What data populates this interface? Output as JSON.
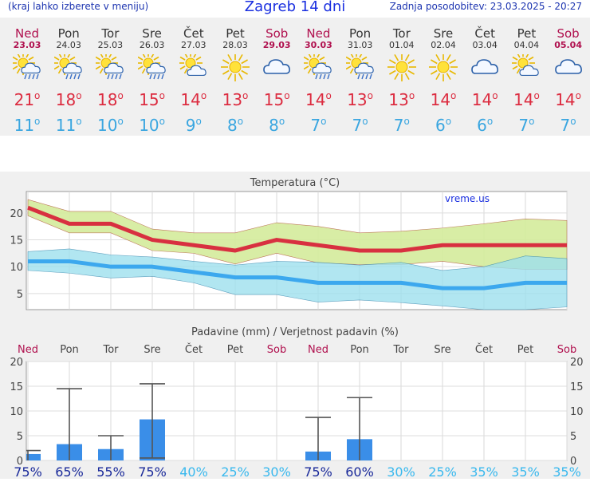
{
  "header": {
    "left_note": "(kraj lahko izberete v meniju)",
    "title": "Zagreb 14 dni",
    "updated": "Zadnja posodobitev: 23.03.2025 - 20:27"
  },
  "days": [
    {
      "name": "Ned",
      "date": "23.03",
      "weekend": true,
      "icon": "sun-cloud-rain-icon",
      "tmax": "21",
      "tmin": "11"
    },
    {
      "name": "Pon",
      "date": "24.03",
      "weekend": false,
      "icon": "sun-cloud-rain-icon",
      "tmax": "18",
      "tmin": "11"
    },
    {
      "name": "Tor",
      "date": "25.03",
      "weekend": false,
      "icon": "sun-cloud-rain-icon",
      "tmax": "18",
      "tmin": "10"
    },
    {
      "name": "Sre",
      "date": "26.03",
      "weekend": false,
      "icon": "sun-cloud-rain-icon",
      "tmax": "15",
      "tmin": "10"
    },
    {
      "name": "Čet",
      "date": "27.03",
      "weekend": false,
      "icon": "sun-cloud-icon",
      "tmax": "14",
      "tmin": "9"
    },
    {
      "name": "Pet",
      "date": "28.03",
      "weekend": false,
      "icon": "sun-icon",
      "tmax": "13",
      "tmin": "8"
    },
    {
      "name": "Sob",
      "date": "29.03",
      "weekend": true,
      "icon": "cloud-icon",
      "tmax": "15",
      "tmin": "8"
    },
    {
      "name": "Ned",
      "date": "30.03",
      "weekend": true,
      "icon": "sun-cloud-rain-icon",
      "tmax": "14",
      "tmin": "7"
    },
    {
      "name": "Pon",
      "date": "31.03",
      "weekend": false,
      "icon": "sun-cloud-rain-icon",
      "tmax": "13",
      "tmin": "7"
    },
    {
      "name": "Tor",
      "date": "01.04",
      "weekend": false,
      "icon": "sun-icon",
      "tmax": "13",
      "tmin": "7"
    },
    {
      "name": "Sre",
      "date": "02.04",
      "weekend": false,
      "icon": "sun-icon",
      "tmax": "14",
      "tmin": "6"
    },
    {
      "name": "Čet",
      "date": "03.04",
      "weekend": false,
      "icon": "cloud-icon",
      "tmax": "14",
      "tmin": "6"
    },
    {
      "name": "Pet",
      "date": "04.04",
      "weekend": false,
      "icon": "sun-cloud-icon",
      "tmax": "14",
      "tmin": "7"
    },
    {
      "name": "Sob",
      "date": "05.04",
      "weekend": true,
      "icon": "cloud-icon",
      "tmax": "14",
      "tmin": "7"
    }
  ],
  "colors": {
    "tmax_text": "#dc2c40",
    "tmin_text": "#3aa6e0",
    "weekend": "#b0104e",
    "max_line": "#d83040",
    "max_band": "#d4ec9c",
    "min_line": "#3ca8ee",
    "min_band": "#9ee0ee",
    "precip_bar": "#3a8ee8",
    "prob_dark": "#1a2a9a",
    "prob_light": "#38b8ee"
  },
  "chart_data": [
    {
      "type": "line",
      "title": "Temperatura (°C)",
      "watermark": "vreme.us",
      "categories": [
        "23.03",
        "24.03",
        "25.03",
        "26.03",
        "27.03",
        "28.03",
        "29.03",
        "30.03",
        "31.03",
        "01.04",
        "02.04",
        "03.04",
        "04.04",
        "05.04"
      ],
      "ylim": [
        2,
        24
      ],
      "yticks": [
        5,
        10,
        15,
        20
      ],
      "series": [
        {
          "key": "max",
          "values": [
            21,
            18,
            18,
            15,
            14,
            13,
            15,
            14,
            13,
            13,
            14,
            14,
            14,
            14
          ]
        },
        {
          "key": "max_upper",
          "values": [
            22.5,
            20.3,
            20.3,
            17,
            16.3,
            16.3,
            18.2,
            17.5,
            16.3,
            16.6,
            17.2,
            18,
            18.9,
            18.6
          ]
        },
        {
          "key": "max_lower",
          "values": [
            19.5,
            16.3,
            16.3,
            13,
            12.5,
            10.5,
            12.5,
            10.7,
            10.4,
            10.4,
            11,
            10,
            9.5,
            9.5
          ]
        },
        {
          "key": "min",
          "values": [
            11,
            11,
            10,
            10,
            9,
            8,
            8,
            7,
            7,
            7,
            6,
            6,
            7,
            7
          ]
        },
        {
          "key": "min_upper",
          "values": [
            12.8,
            13.3,
            12.2,
            11.8,
            11,
            10.3,
            11,
            10.8,
            10.3,
            10.8,
            9.3,
            10,
            12,
            11.5
          ]
        },
        {
          "key": "min_lower",
          "values": [
            9.3,
            8.8,
            7.9,
            8.2,
            7,
            4.8,
            4.8,
            3.4,
            3.8,
            3.3,
            2.7,
            2,
            2,
            2.5
          ]
        }
      ]
    },
    {
      "type": "bar",
      "title": "Padavine (mm) / Verjetnost padavin (%)",
      "categories": [
        "Ned",
        "Pon",
        "Tor",
        "Sre",
        "Čet",
        "Pet",
        "Sob",
        "Ned",
        "Pon",
        "Tor",
        "Sre",
        "Čet",
        "Pet",
        "Sob"
      ],
      "weekend_flags": [
        true,
        false,
        false,
        false,
        false,
        false,
        true,
        true,
        false,
        false,
        false,
        false,
        false,
        true
      ],
      "ylim": [
        0,
        20
      ],
      "yticks": [
        0,
        5,
        10,
        15,
        20
      ],
      "precip_mm": [
        1.3,
        3.3,
        2.3,
        8.3,
        0,
        0,
        0,
        1.8,
        4.3,
        0,
        0,
        0,
        0,
        0
      ],
      "range_low": [
        0,
        0,
        0,
        0.5,
        0,
        0,
        0,
        0,
        0,
        0,
        0,
        0,
        0,
        0
      ],
      "range_high": [
        2,
        14.5,
        5,
        15.5,
        0,
        0,
        0,
        8.7,
        12.7,
        0,
        0,
        0,
        0,
        0
      ],
      "probability": [
        "75%",
        "65%",
        "55%",
        "75%",
        "40%",
        "25%",
        "30%",
        "75%",
        "60%",
        "30%",
        "25%",
        "35%",
        "35%",
        "35%"
      ],
      "probability_values": [
        75,
        65,
        55,
        75,
        40,
        25,
        30,
        75,
        60,
        30,
        25,
        35,
        35,
        35
      ]
    }
  ]
}
